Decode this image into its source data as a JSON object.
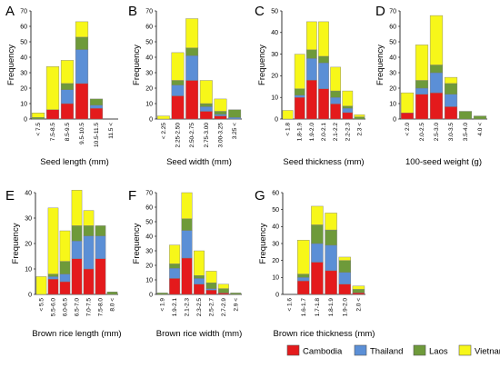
{
  "series_colors": {
    "Cambodia": "#e41a1c",
    "Thailand": "#5b8fd6",
    "Laos": "#6e9a3a",
    "Vietnam": "#f7f719"
  },
  "legend": [
    "Cambodia",
    "Thailand",
    "Laos",
    "Vietnam"
  ],
  "chart_data": [
    {
      "type": "bar",
      "stacked": true,
      "panel": "A",
      "xlabel": "Seed length (mm)",
      "ylabel": "Frequency",
      "ylim": [
        0,
        70
      ],
      "yticks": [
        0,
        10,
        20,
        30,
        40,
        50,
        60,
        70
      ],
      "categories": [
        "< 7.5",
        "7.5-8.5",
        "8.5-9.5",
        "9.5-10.5",
        "10.5-11.5",
        "11.5 <"
      ],
      "series": [
        {
          "name": "Cambodia",
          "values": [
            0,
            6,
            10,
            23,
            7,
            0
          ]
        },
        {
          "name": "Thailand",
          "values": [
            0,
            0,
            9,
            22,
            2,
            0
          ]
        },
        {
          "name": "Laos",
          "values": [
            1,
            0,
            4,
            8,
            4,
            0
          ]
        },
        {
          "name": "Vietnam",
          "values": [
            3,
            28,
            15,
            10,
            0,
            0
          ]
        }
      ]
    },
    {
      "type": "bar",
      "stacked": true,
      "panel": "B",
      "xlabel": "Seed width (mm)",
      "ylabel": "Frequency",
      "ylim": [
        0,
        70
      ],
      "yticks": [
        0,
        10,
        20,
        30,
        40,
        50,
        60,
        70
      ],
      "categories": [
        "< 2.25",
        "2.25-2.50",
        "2.50-2.75",
        "2.75-3.00",
        "3.00-3.25",
        "3.25 <"
      ],
      "series": [
        {
          "name": "Cambodia",
          "values": [
            0,
            15,
            25,
            5,
            2,
            0
          ]
        },
        {
          "name": "Thailand",
          "values": [
            0,
            7,
            16,
            3,
            1,
            1
          ]
        },
        {
          "name": "Laos",
          "values": [
            0,
            3,
            5,
            2,
            2,
            5
          ]
        },
        {
          "name": "Vietnam",
          "values": [
            2,
            18,
            19,
            15,
            8,
            0
          ]
        }
      ]
    },
    {
      "type": "bar",
      "stacked": true,
      "panel": "C",
      "xlabel": "Seed thickness (mm)",
      "ylabel": "Frequency",
      "ylim": [
        0,
        50
      ],
      "yticks": [
        0,
        10,
        20,
        30,
        40,
        50
      ],
      "categories": [
        "< 1.8",
        "1.8-1.9",
        "1.9-2.0",
        "2.0-2.1",
        "2.1-2.2",
        "2.2-2.3",
        "2.3 <"
      ],
      "series": [
        {
          "name": "Cambodia",
          "values": [
            0,
            10,
            18,
            14,
            7,
            3,
            0
          ]
        },
        {
          "name": "Thailand",
          "values": [
            0,
            1,
            10,
            12,
            3,
            2,
            0
          ]
        },
        {
          "name": "Laos",
          "values": [
            0,
            3,
            4,
            3,
            3,
            1,
            1
          ]
        },
        {
          "name": "Vietnam",
          "values": [
            4,
            16,
            13,
            16,
            11,
            7,
            1
          ]
        }
      ]
    },
    {
      "type": "bar",
      "stacked": true,
      "panel": "D",
      "xlabel": "100-seed weight (g)",
      "ylabel": "Frequency",
      "ylim": [
        0,
        70
      ],
      "yticks": [
        0,
        10,
        20,
        30,
        40,
        50,
        60,
        70
      ],
      "categories": [
        "< 2.0",
        "2.0-2.5",
        "2.5-3.0",
        "3.0-3.5",
        "3.5-4.0",
        "4.0 <"
      ],
      "series": [
        {
          "name": "Cambodia",
          "values": [
            4,
            16,
            17,
            8,
            0,
            0
          ]
        },
        {
          "name": "Thailand",
          "values": [
            0,
            4,
            13,
            8,
            0,
            0
          ]
        },
        {
          "name": "Laos",
          "values": [
            0,
            5,
            5,
            7,
            5,
            2
          ]
        },
        {
          "name": "Vietnam",
          "values": [
            13,
            23,
            32,
            4,
            0,
            0
          ]
        }
      ]
    },
    {
      "type": "bar",
      "stacked": true,
      "panel": "E",
      "xlabel": "Brown rice length (mm)",
      "ylabel": "Frequency",
      "ylim": [
        0,
        40
      ],
      "yticks": [
        0,
        10,
        20,
        30,
        40
      ],
      "categories": [
        "< 5.5",
        "5.5-6.0",
        "6.0-6.5",
        "6.5-7.0",
        "7.0-7.5",
        "7.5-8.0",
        "8.0 <"
      ],
      "series": [
        {
          "name": "Cambodia",
          "values": [
            0,
            6,
            5,
            14,
            10,
            14,
            0
          ]
        },
        {
          "name": "Thailand",
          "values": [
            0,
            1,
            3,
            7,
            13,
            9,
            0
          ]
        },
        {
          "name": "Laos",
          "values": [
            0,
            1,
            5,
            6,
            4,
            4,
            1
          ]
        },
        {
          "name": "Vietnam",
          "values": [
            7,
            26,
            12,
            14,
            6,
            0,
            0
          ]
        }
      ]
    },
    {
      "type": "bar",
      "stacked": true,
      "panel": "F",
      "xlabel": "Brown rice width (mm)",
      "ylabel": "Frequency",
      "ylim": [
        0,
        70
      ],
      "yticks": [
        0,
        10,
        20,
        30,
        40,
        50,
        60,
        70
      ],
      "categories": [
        "< 1.9",
        "1.9-2.1",
        "2.1-2.3",
        "2.3-2.5",
        "2.5-2.7",
        "2.7-2.9",
        "2.9 <"
      ],
      "series": [
        {
          "name": "Cambodia",
          "values": [
            0,
            11,
            25,
            7,
            3,
            1,
            0
          ]
        },
        {
          "name": "Thailand",
          "values": [
            0,
            7,
            19,
            4,
            1,
            0,
            0
          ]
        },
        {
          "name": "Laos",
          "values": [
            1,
            3,
            8,
            2,
            4,
            3,
            1
          ]
        },
        {
          "name": "Vietnam",
          "values": [
            0,
            13,
            18,
            17,
            8,
            3,
            0
          ]
        }
      ]
    },
    {
      "type": "bar",
      "stacked": true,
      "panel": "G",
      "xlabel": "Brown rice thickness (mm)",
      "ylabel": "Frequency",
      "ylim": [
        0,
        60
      ],
      "yticks": [
        0,
        10,
        20,
        30,
        40,
        50,
        60
      ],
      "categories": [
        "< 1.6",
        "1.6-1.7",
        "1.7-1.8",
        "1.8-1.9",
        "1.9-2.0",
        "2.0 <"
      ],
      "series": [
        {
          "name": "Cambodia",
          "values": [
            0,
            8,
            19,
            14,
            6,
            1
          ]
        },
        {
          "name": "Thailand",
          "values": [
            0,
            2,
            11,
            15,
            7,
            0
          ]
        },
        {
          "name": "Laos",
          "values": [
            0,
            2,
            11,
            9,
            7,
            2
          ]
        },
        {
          "name": "Vietnam",
          "values": [
            0,
            20,
            11,
            10,
            2,
            2
          ]
        }
      ]
    }
  ]
}
